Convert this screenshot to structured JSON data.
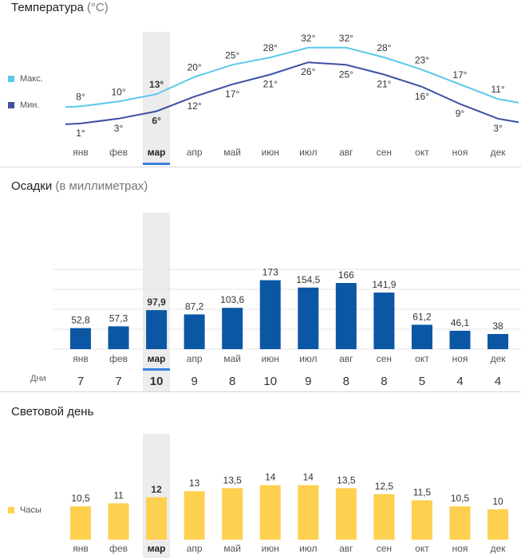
{
  "temperature": {
    "title": "Температура",
    "unit": "(°C)",
    "legend_max": "Макс.",
    "legend_min": "Мин.",
    "color_max": "#5bc8ec",
    "color_min": "#3f4fa3"
  },
  "precipitation": {
    "title": "Осадки",
    "unit": "(в миллиметрах)",
    "days_label": "Дни",
    "color": "#0b57a4"
  },
  "daylight": {
    "title": "Световой день",
    "legend_hours": "Часы",
    "color": "#fdd04f"
  },
  "highlight_month_index": 2,
  "highlight_color": "#3b82e0",
  "chart_data": [
    {
      "type": "line",
      "title": "Температура (°C)",
      "categories": [
        "янв",
        "фев",
        "мар",
        "апр",
        "май",
        "июн",
        "июл",
        "авг",
        "сен",
        "окт",
        "ноя",
        "дек"
      ],
      "series": [
        {
          "name": "Макс.",
          "values": [
            8,
            10,
            13,
            20,
            25,
            28,
            32,
            32,
            28,
            23,
            17,
            11
          ],
          "labels": [
            "8°",
            "10°",
            "13°",
            "20°",
            "25°",
            "28°",
            "32°",
            "32°",
            "28°",
            "23°",
            "17°",
            "11°"
          ]
        },
        {
          "name": "Мин.",
          "values": [
            1,
            3,
            6,
            12,
            17,
            21,
            26,
            25,
            21,
            16,
            9,
            3
          ],
          "labels": [
            "1°",
            "3°",
            "6°",
            "12°",
            "17°",
            "21°",
            "26°",
            "25°",
            "21°",
            "16°",
            "9°",
            "3°"
          ]
        }
      ]
    },
    {
      "type": "bar",
      "title": "Осадки (в миллиметрах)",
      "categories": [
        "янв",
        "фев",
        "мар",
        "апр",
        "май",
        "июн",
        "июл",
        "авг",
        "сен",
        "окт",
        "ноя",
        "дек"
      ],
      "values": [
        52.8,
        57.3,
        97.9,
        87.2,
        103.6,
        173,
        154.5,
        166,
        141.9,
        61.2,
        46.1,
        38
      ],
      "labels": [
        "52,8",
        "57,3",
        "97,9",
        "87,2",
        "103,6",
        "173",
        "154,5",
        "166",
        "141,9",
        "61,2",
        "46,1",
        "38"
      ],
      "days": [
        "7",
        "7",
        "10",
        "9",
        "8",
        "10",
        "9",
        "8",
        "8",
        "5",
        "4",
        "4"
      ],
      "ylim": [
        0,
        200
      ]
    },
    {
      "type": "bar",
      "title": "Световой день",
      "categories": [
        "янв",
        "фев",
        "мар",
        "апр",
        "май",
        "июн",
        "июл",
        "авг",
        "сен",
        "окт",
        "ноя",
        "дек"
      ],
      "values": [
        10.5,
        11,
        12,
        13,
        13.5,
        14,
        14,
        13.5,
        12.5,
        11.5,
        10.5,
        10
      ],
      "labels": [
        "10,5",
        "11",
        "12",
        "13",
        "13,5",
        "14",
        "14",
        "13,5",
        "12,5",
        "11,5",
        "10,5",
        "10"
      ]
    }
  ]
}
